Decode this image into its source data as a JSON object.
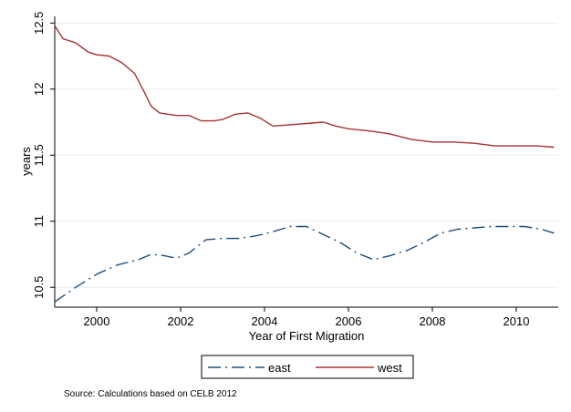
{
  "chart_data": {
    "type": "line",
    "xlabel": "Year of First Migration",
    "ylabel": "years",
    "xlim": [
      1999,
      2011
    ],
    "ylim": [
      10.35,
      12.55
    ],
    "x_ticks": [
      "2000",
      "2002",
      "2004",
      "2006",
      "2008",
      "2010"
    ],
    "y_ticks": [
      "10.5",
      "11",
      "11.5",
      "12",
      "12.5"
    ],
    "grid": "horizontal",
    "legend_position": "bottom",
    "source": "Source: Calculations based on CELB 2012",
    "series": [
      {
        "name": "east",
        "color": "#1f4e79",
        "dash": "long-dash-dot",
        "x": [
          1999,
          1999.5,
          2000,
          2000.5,
          2001,
          2001.3,
          2001.6,
          2001.9,
          2002.2,
          2002.6,
          2003,
          2003.4,
          2003.8,
          2004.2,
          2004.6,
          2005,
          2005.4,
          2005.8,
          2006.2,
          2006.6,
          2007,
          2007.4,
          2007.8,
          2008.2,
          2008.6,
          2009,
          2009.4,
          2009.8,
          2010.2,
          2010.6,
          2010.9
        ],
        "y": [
          10.39,
          10.5,
          10.6,
          10.67,
          10.71,
          10.75,
          10.74,
          10.72,
          10.76,
          10.86,
          10.87,
          10.87,
          10.89,
          10.92,
          10.96,
          10.96,
          10.9,
          10.84,
          10.76,
          10.71,
          10.74,
          10.78,
          10.84,
          10.91,
          10.94,
          10.95,
          10.96,
          10.96,
          10.96,
          10.94,
          10.91
        ]
      },
      {
        "name": "west",
        "color": "#a83232",
        "dash": "solid",
        "x": [
          1999,
          1999.2,
          1999.5,
          1999.8,
          2000,
          2000.3,
          2000.6,
          2000.9,
          2001.1,
          2001.3,
          2001.5,
          2001.7,
          2001.9,
          2002.2,
          2002.5,
          2002.8,
          2003,
          2003.3,
          2003.6,
          2003.9,
          2004.2,
          2004.6,
          2005,
          2005.4,
          2005.7,
          2006,
          2006.3,
          2006.6,
          2007,
          2007.5,
          2008,
          2008.5,
          2009,
          2009.5,
          2010,
          2010.5,
          2010.9
        ],
        "y": [
          12.48,
          12.38,
          12.35,
          12.28,
          12.26,
          12.25,
          12.2,
          12.12,
          12,
          11.87,
          11.82,
          11.81,
          11.8,
          11.8,
          11.76,
          11.76,
          11.77,
          11.81,
          11.82,
          11.78,
          11.72,
          11.73,
          11.74,
          11.75,
          11.72,
          11.7,
          11.69,
          11.68,
          11.66,
          11.62,
          11.6,
          11.6,
          11.59,
          11.57,
          11.57,
          11.57,
          11.56
        ]
      }
    ]
  }
}
